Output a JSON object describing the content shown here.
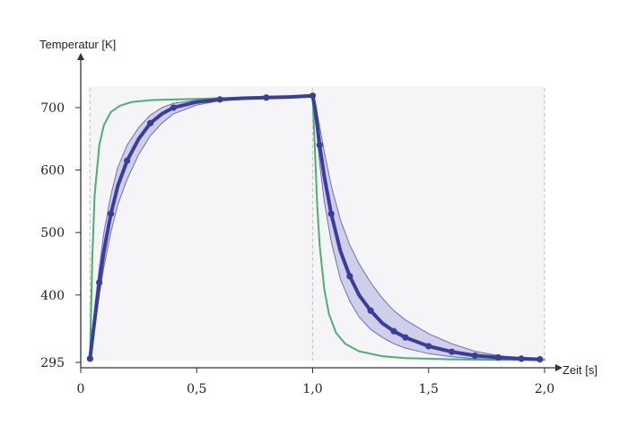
{
  "chart_data": {
    "type": "line",
    "title": "",
    "xlabel": "Zeit [s]",
    "ylabel": "Temperatur [K]",
    "xlim": [
      0,
      2.0
    ],
    "ylim": [
      295,
      720
    ],
    "x_ticks": [
      {
        "value": 0,
        "label": "0"
      },
      {
        "value": 0.5,
        "label": "0,5"
      },
      {
        "value": 1.0,
        "label": "1,0"
      },
      {
        "value": 1.5,
        "label": "1,5"
      },
      {
        "value": 2.0,
        "label": "2,0"
      }
    ],
    "y_ticks": [
      {
        "value": 295,
        "label": "295"
      },
      {
        "value": 400,
        "label": "400"
      },
      {
        "value": 500,
        "label": "500"
      },
      {
        "value": 600,
        "label": "600"
      },
      {
        "value": 700,
        "label": "700"
      }
    ],
    "vlines": [
      0.04,
      1.0,
      2.0
    ],
    "colors": {
      "fast": "#4caf70",
      "slow": "#3b3d9b",
      "band": "#c9c8e6",
      "background": "#f5f5f8"
    },
    "series": [
      {
        "color_key": "fast",
        "x": [
          0.04,
          0.05,
          0.06,
          0.08,
          0.1,
          0.13,
          0.17,
          0.22,
          0.3,
          0.4,
          0.5,
          0.7,
          0.9,
          1.0,
          1.01,
          1.02,
          1.03,
          1.05,
          1.07,
          1.1,
          1.14,
          1.2,
          1.3,
          1.4,
          1.5,
          1.6,
          1.8,
          2.0
        ],
        "y": [
          300,
          460,
          560,
          640,
          672,
          693,
          703,
          709,
          712,
          713,
          714,
          716,
          718,
          719,
          630,
          540,
          480,
          410,
          370,
          340,
          322,
          310,
          302,
          299,
          298,
          297,
          296,
          296
        ]
      },
      {
        "color_key": "slow",
        "x": [
          0.04,
          0.06,
          0.08,
          0.1,
          0.13,
          0.16,
          0.2,
          0.25,
          0.3,
          0.35,
          0.4,
          0.5,
          0.6,
          0.7,
          0.8,
          0.9,
          1.0,
          1.01,
          1.03,
          1.05,
          1.08,
          1.12,
          1.16,
          1.2,
          1.25,
          1.3,
          1.35,
          1.4,
          1.5,
          1.6,
          1.7,
          1.8,
          1.9,
          1.98
        ],
        "y": [
          298,
          360,
          420,
          470,
          530,
          575,
          615,
          650,
          675,
          690,
          700,
          709,
          713,
          715,
          716,
          717,
          719,
          700,
          640,
          590,
          530,
          470,
          430,
          400,
          375,
          355,
          342,
          332,
          318,
          309,
          303,
          300,
          298,
          297
        ]
      }
    ],
    "band": {
      "color_key": "band",
      "x": [
        0.04,
        0.06,
        0.08,
        0.1,
        0.13,
        0.16,
        0.2,
        0.25,
        0.3,
        0.35,
        0.4,
        0.5,
        0.6,
        0.7,
        0.8,
        0.9,
        1.0,
        1.01,
        1.03,
        1.05,
        1.08,
        1.12,
        1.16,
        1.2,
        1.25,
        1.3,
        1.35,
        1.4,
        1.5,
        1.6,
        1.7,
        1.8,
        1.9,
        1.98
      ],
      "upper": [
        300,
        380,
        445,
        500,
        560,
        605,
        640,
        668,
        688,
        700,
        707,
        712,
        714,
        715,
        716,
        717,
        719,
        710,
        670,
        630,
        575,
        520,
        480,
        450,
        420,
        395,
        375,
        360,
        338,
        322,
        310,
        303,
        299,
        297
      ],
      "lower": [
        296,
        345,
        400,
        445,
        500,
        545,
        585,
        625,
        655,
        675,
        690,
        704,
        711,
        714,
        716,
        717,
        719,
        690,
        610,
        550,
        485,
        425,
        390,
        365,
        345,
        332,
        322,
        315,
        306,
        301,
        298,
        297,
        296,
        296
      ]
    }
  }
}
